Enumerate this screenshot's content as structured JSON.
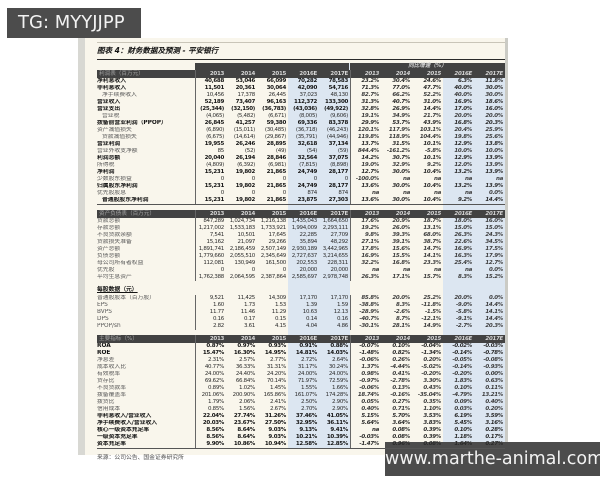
{
  "overlays": {
    "tg_label": "TG: MYYJJPP",
    "website": "www.marthe-animal.com"
  },
  "colors": {
    "page_bg": "#f9f6ec",
    "band_bg": "#424242",
    "column_shade": "#dce6f1",
    "overlay_bg": "#4c4c4c"
  },
  "page": {
    "title": "图表 4：财务数据及预测 - 平安银行",
    "growth_header": "同比增速（%）",
    "years": [
      "2013",
      "2014",
      "2015",
      "2016E",
      "2017E"
    ],
    "source_note": "来源：公司公告、国金证券研究所"
  },
  "table": {
    "sections": [
      {
        "header": "利润表（百万元）",
        "style": "band",
        "top_band": true,
        "rows": [
          {
            "label": "净利息收入",
            "b": 1,
            "v": [
              "40,688",
              "53,046",
              "66,099",
              "70,282",
              "78,583"
            ],
            "g": [
              "23.2%",
              "30.4%",
              "24.6%",
              "6.3%",
              "11.8%"
            ]
          },
          {
            "label": "非利息收入",
            "b": 1,
            "v": [
              "11,501",
              "20,361",
              "30,064",
              "42,090",
              "54,716"
            ],
            "g": [
              "71.3%",
              "77.0%",
              "47.7%",
              "40.0%",
              "30.0%"
            ]
          },
          {
            "label": "净手续费收入",
            "ind": 1,
            "v": [
              "10,456",
              "17,378",
              "26,445",
              "37,023",
              "48,130"
            ],
            "g": [
              "82.7%",
              "66.2%",
              "52.2%",
              "40.0%",
              "30.0%"
            ]
          },
          {
            "label": "营业收入",
            "b": 1,
            "v": [
              "52,189",
              "73,407",
              "96,163",
              "112,372",
              "133,300"
            ],
            "g": [
              "31.3%",
              "40.7%",
              "31.0%",
              "16.9%",
              "18.6%"
            ]
          },
          {
            "label": "营业支出",
            "b": 1,
            "v": [
              "(25,344)",
              "(32,150)",
              "(36,783)",
              "(43,036)",
              "(49,922)"
            ],
            "g": [
              "32.8%",
              "26.9%",
              "14.4%",
              "17.0%",
              "16.0%"
            ]
          },
          {
            "label": "营业税",
            "ind": 1,
            "v": [
              "(4,065)",
              "(5,482)",
              "(6,671)",
              "(8,005)",
              "(9,606)"
            ],
            "g": [
              "19.1%",
              "34.9%",
              "21.7%",
              "20.0%",
              "20.0%"
            ]
          },
          {
            "label": "拨备前营业利润（PPOP）",
            "b": 1,
            "v": [
              "26,845",
              "41,257",
              "59,380",
              "69,336",
              "83,378"
            ],
            "g": [
              "29.9%",
              "53.7%",
              "43.9%",
              "16.8%",
              "20.3%"
            ]
          },
          {
            "label": "资产减值损失",
            "v": [
              "(6,890)",
              "(15,011)",
              "(30,485)",
              "(36,718)",
              "(46,243)"
            ],
            "g": [
              "120.1%",
              "117.9%",
              "103.1%",
              "20.4%",
              "25.9%"
            ]
          },
          {
            "label": "贷款减值损失",
            "ind": 1,
            "v": [
              "(6,675)",
              "(14,614)",
              "(29,867)",
              "(35,791)",
              "(44,946)"
            ],
            "g": [
              "119.8%",
              "118.9%",
              "104.4%",
              "19.8%",
              "25.6%"
            ]
          },
          {
            "label": "营业利润",
            "b": 1,
            "v": [
              "19,955",
              "26,246",
              "28,895",
              "32,618",
              "37,134"
            ],
            "g": [
              "13.7%",
              "31.5%",
              "10.1%",
              "12.9%",
              "13.8%"
            ]
          },
          {
            "label": "营业外收支净额",
            "v": [
              "85",
              "(52)",
              "(49)",
              "(54)",
              "(59)"
            ],
            "g": [
              "844.4%",
              "-161.2%",
              "-5.8%",
              "10.0%",
              "10.0%"
            ]
          },
          {
            "label": "利润总额",
            "b": 1,
            "v": [
              "20,040",
              "26,194",
              "28,846",
              "32,564",
              "37,075"
            ],
            "g": [
              "14.2%",
              "30.7%",
              "10.1%",
              "12.9%",
              "13.9%"
            ]
          },
          {
            "label": "所得税",
            "v": [
              "(4,809)",
              "(6,392)",
              "(6,981)",
              "(7,815)",
              "(8,898)"
            ],
            "g": [
              "19.0%",
              "32.9%",
              "9.2%",
              "12.0%",
              "13.9%"
            ]
          },
          {
            "label": "净利润",
            "b": 1,
            "v": [
              "15,231",
              "19,802",
              "21,865",
              "24,749",
              "28,177"
            ],
            "g": [
              "12.7%",
              "30.0%",
              "10.4%",
              "13.2%",
              "13.9%"
            ]
          },
          {
            "label": "少数股东损益",
            "v": [
              "0",
              "0",
              "0",
              "0",
              "0"
            ],
            "g": [
              "-100.0%",
              "na",
              "na",
              "na",
              "na"
            ]
          },
          {
            "label": "归属股东净利润",
            "b": 1,
            "v": [
              "15,231",
              "19,802",
              "21,865",
              "24,749",
              "28,177"
            ],
            "g": [
              "13.6%",
              "30.0%",
              "10.4%",
              "13.2%",
              "13.9%"
            ]
          },
          {
            "label": "优先股股息",
            "v": [
              "0",
              "0",
              "0",
              "874",
              "874"
            ],
            "g": [
              "na",
              "na",
              "na",
              "na",
              "0.0%"
            ]
          },
          {
            "label": "普通股股东净利润",
            "b": 1,
            "ind": 1,
            "u": 1,
            "v": [
              "15,231",
              "19,802",
              "21,865",
              "23,875",
              "27,303"
            ],
            "g": [
              "13.6%",
              "30.0%",
              "10.4%",
              "9.2%",
              "14.4%"
            ]
          }
        ]
      },
      {
        "header": "资产负债表（百万元）",
        "style": "band",
        "gap_before": true,
        "rows": [
          {
            "label": "贷款总额",
            "v": [
              "847,289",
              "1,024,734",
              "1,216,138",
              "1,435,043",
              "1,664,650"
            ],
            "g": [
              "17.6%",
              "20.9%",
              "18.7%",
              "18.0%",
              "16.0%"
            ]
          },
          {
            "label": "存款总额",
            "v": [
              "1,217,002",
              "1,533,183",
              "1,733,921",
              "1,994,009",
              "2,293,111"
            ],
            "g": [
              "19.2%",
              "26.0%",
              "13.1%",
              "15.0%",
              "15.0%"
            ]
          },
          {
            "label": "不良贷款余额",
            "v": [
              "7,541",
              "10,501",
              "17,645",
              "22,285",
              "27,709"
            ],
            "g": [
              "9.8%",
              "39.3%",
              "68.0%",
              "26.3%",
              "24.3%"
            ]
          },
          {
            "label": "贷款损失准备",
            "v": [
              "15,162",
              "21,097",
              "29,266",
              "35,894",
              "48,292"
            ],
            "g": [
              "27.1%",
              "39.1%",
              "38.7%",
              "22.6%",
              "34.5%"
            ]
          },
          {
            "label": "资产总额",
            "v": [
              "1,891,741",
              "2,186,459",
              "2,507,149",
              "2,930,189",
              "3,442,965"
            ],
            "g": [
              "17.8%",
              "15.6%",
              "14.7%",
              "16.9%",
              "17.5%"
            ]
          },
          {
            "label": "负债总额",
            "v": [
              "1,779,660",
              "2,055,510",
              "2,345,649",
              "2,727,637",
              "3,214,655"
            ],
            "g": [
              "16.9%",
              "15.5%",
              "14.1%",
              "16.3%",
              "17.9%"
            ]
          },
          {
            "label": "母公司所有者权益",
            "v": [
              "112,081",
              "130,949",
              "161,500",
              "202,553",
              "228,311"
            ],
            "g": [
              "32.2%",
              "16.8%",
              "23.3%",
              "25.4%",
              "12.7%"
            ]
          },
          {
            "label": "优先股",
            "v": [
              "0",
              "0",
              "0",
              "20,000",
              "20,000"
            ],
            "g": [
              "na",
              "na",
              "na",
              "na",
              "0.0%"
            ]
          },
          {
            "label": "平均生息资产",
            "v": [
              "1,762,388",
              "2,064,595",
              "2,387,864",
              "2,585,697",
              "2,978,748"
            ],
            "g": [
              "26.3%",
              "17.1%",
              "15.7%",
              "8.3%",
              "15.2%"
            ]
          }
        ]
      },
      {
        "header": "每股数据（元）",
        "style": "label",
        "gap_before": true,
        "rows": [
          {
            "label": "普通股股本（百万股）",
            "v": [
              "9,521",
              "11,425",
              "14,309",
              "17,170",
              "17,170"
            ],
            "g": [
              "85.8%",
              "20.0%",
              "25.2%",
              "20.0%",
              "0.0%"
            ]
          },
          {
            "label": "EPS",
            "v": [
              "1.60",
              "1.73",
              "1.53",
              "1.39",
              "1.59"
            ],
            "g": [
              "-38.8%",
              "8.3%",
              "-11.8%",
              "-9.0%",
              "14.4%"
            ]
          },
          {
            "label": "BVPS",
            "v": [
              "11.77",
              "11.46",
              "11.29",
              "10.63",
              "12.13"
            ],
            "g": [
              "-28.9%",
              "-2.6%",
              "-1.5%",
              "-5.8%",
              "14.1%"
            ]
          },
          {
            "label": "DPS",
            "v": [
              "0.16",
              "0.17",
              "0.15",
              "0.14",
              "0.16"
            ],
            "g": [
              "-40.7%",
              "8.7%",
              "-12.1%",
              "-9.1%",
              "14.4%"
            ]
          },
          {
            "label": "PPOP/sh",
            "v": [
              "2.82",
              "3.61",
              "4.15",
              "4.04",
              "4.86"
            ],
            "g": [
              "-30.1%",
              "28.1%",
              "14.9%",
              "-2.7%",
              "20.3%"
            ]
          }
        ]
      },
      {
        "header": "主要指标（%）",
        "style": "band",
        "gap_before": true,
        "rows": [
          {
            "label": "ROA",
            "b": 1,
            "v": [
              "0.87%",
              "0.97%",
              "0.93%",
              "0.91%",
              "0.88%"
            ],
            "g": [
              "-0.07%",
              "0.10%",
              "-0.04%",
              "-0.02%",
              "-0.03%"
            ]
          },
          {
            "label": "ROE",
            "b": 1,
            "v": [
              "15.47%",
              "16.30%",
              "14.95%",
              "14.81%",
              "14.03%"
            ],
            "g": [
              "-1.48%",
              "0.82%",
              "-1.34%",
              "-0.14%",
              "-0.78%"
            ]
          },
          {
            "label": "净息差",
            "v": [
              "2.31%",
              "2.57%",
              "2.77%",
              "2.72%",
              "2.64%"
            ],
            "g": [
              "-0.06%",
              "0.26%",
              "0.20%",
              "-0.05%",
              "-0.08%"
            ]
          },
          {
            "label": "成本收入比",
            "v": [
              "40.77%",
              "36.33%",
              "31.31%",
              "31.17%",
              "30.24%"
            ],
            "g": [
              "1.37%",
              "-4.44%",
              "-5.02%",
              "-0.14%",
              "-0.93%"
            ]
          },
          {
            "label": "有效税率",
            "v": [
              "24.00%",
              "24.40%",
              "24.20%",
              "24.00%",
              "24.00%"
            ],
            "g": [
              "0.98%",
              "0.41%",
              "-0.20%",
              "-0.20%",
              "0.00%"
            ]
          },
          {
            "label": "贷存比",
            "v": [
              "69.62%",
              "66.84%",
              "70.14%",
              "71.97%",
              "72.59%"
            ],
            "g": [
              "-0.97%",
              "-2.78%",
              "3.30%",
              "1.83%",
              "0.63%"
            ]
          },
          {
            "label": "不良贷款率",
            "v": [
              "0.89%",
              "1.02%",
              "1.45%",
              "1.55%",
              "1.66%"
            ],
            "g": [
              "-0.06%",
              "0.13%",
              "0.43%",
              "0.10%",
              "0.11%"
            ]
          },
          {
            "label": "拨备覆盖率",
            "v": [
              "201.06%",
              "200.90%",
              "165.86%",
              "161.07%",
              "174.28%"
            ],
            "g": [
              "18.74%",
              "-0.16%",
              "-35.04%",
              "-4.79%",
              "13.21%"
            ]
          },
          {
            "label": "拨贷比",
            "v": [
              "1.79%",
              "2.06%",
              "2.41%",
              "2.50%",
              "2.90%"
            ],
            "g": [
              "0.05%",
              "0.27%",
              "0.35%",
              "0.09%",
              "0.40%"
            ]
          },
          {
            "label": "信用成本",
            "v": [
              "0.85%",
              "1.56%",
              "2.67%",
              "2.70%",
              "2.90%"
            ],
            "g": [
              "0.40%",
              "0.71%",
              "1.10%",
              "0.03%",
              "0.20%"
            ]
          },
          {
            "label": "非利息收入/营业收入",
            "b": 1,
            "v": [
              "22.04%",
              "27.74%",
              "31.26%",
              "37.46%",
              "41.05%"
            ],
            "g": [
              "5.15%",
              "5.70%",
              "3.53%",
              "6.19%",
              "3.59%"
            ]
          },
          {
            "label": "净手续费收入/营业收入",
            "b": 1,
            "v": [
              "20.03%",
              "23.67%",
              "27.50%",
              "32.95%",
              "36.11%"
            ],
            "g": [
              "5.64%",
              "3.64%",
              "3.83%",
              "5.45%",
              "3.16%"
            ]
          },
          {
            "label": "核心一级资本充足率",
            "b": 1,
            "v": [
              "8.56%",
              "8.64%",
              "9.03%",
              "9.13%",
              "9.41%"
            ],
            "g": [
              "na",
              "0.08%",
              "0.39%",
              "0.10%",
              "0.28%"
            ]
          },
          {
            "label": "一级资本充足率",
            "b": 1,
            "v": [
              "8.56%",
              "8.64%",
              "9.03%",
              "10.21%",
              "10.39%"
            ],
            "g": [
              "-0.03%",
              "0.08%",
              "0.39%",
              "1.18%",
              "0.17%"
            ]
          },
          {
            "label": "资本充足率",
            "b": 1,
            "u": 1,
            "v": [
              "9.90%",
              "10.86%",
              "10.94%",
              "12.58%",
              "12.85%"
            ],
            "g": [
              "-1.47%",
              "0.96%",
              "0.08%",
              "1.64%",
              "0.27%"
            ]
          }
        ]
      }
    ]
  }
}
